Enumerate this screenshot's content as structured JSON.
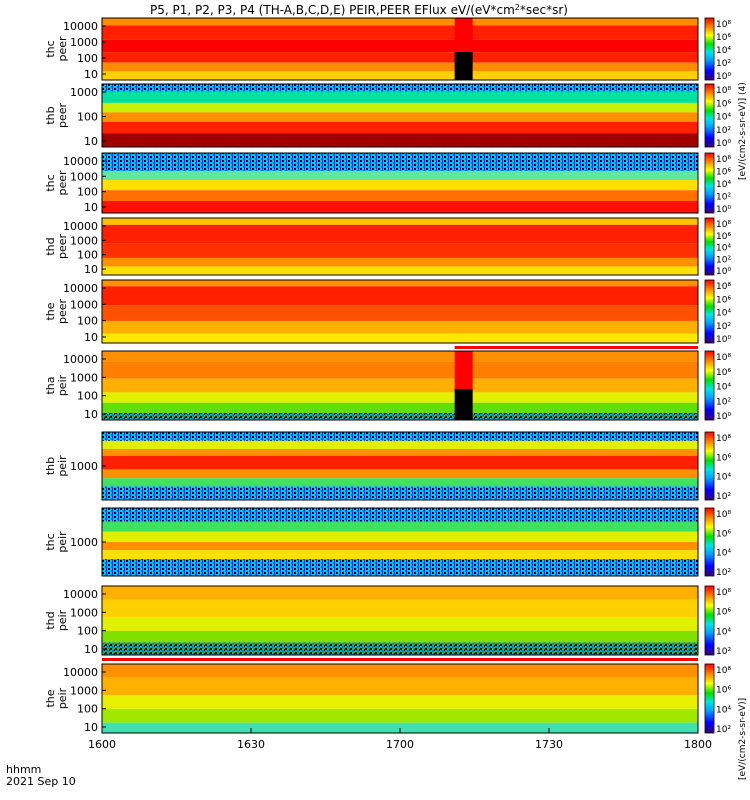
{
  "figure": {
    "title": "P5, P1, P2, P3, P4 (TH-A,B,C,D,E) PEIR,PEER EFlux eV/(eV*cm",
    "title_sup": "2",
    "title_tail": "*sec*sr)",
    "xaxis_label_line1": "hhmm",
    "xaxis_label_line2": "2021 Sep 10",
    "colorbar_unit_label": "[eV/(cm2-s-sr-eV)]",
    "colorbar_unit_label_top": "[eV/(cm2-s-sr-eV)] (4)"
  },
  "chart_data": {
    "type": "heatmap",
    "x_axis": {
      "ticks": [
        "1600",
        "1630",
        "1700",
        "1730",
        "1800"
      ],
      "range": [
        "1600",
        "1800"
      ]
    },
    "colorbar_scale": "log",
    "colormap": "rainbow",
    "panels": [
      {
        "name": "thc peer",
        "label_line1": "thc",
        "label_line2": "peer",
        "y_scale": "log",
        "y_ticks": [
          "10000",
          "1000",
          "100",
          "10"
        ],
        "cb_ticks": [
          "10⁸",
          "10⁶",
          "10⁴",
          "10²",
          "10⁰"
        ]
      },
      {
        "name": "thb peer",
        "label_line1": "thb",
        "label_line2": "peer",
        "y_scale": "log",
        "y_ticks": [
          "1000",
          "100",
          "10"
        ],
        "cb_ticks": [
          "10⁸",
          "10⁶",
          "10⁴",
          "10²",
          "10⁰"
        ]
      },
      {
        "name": "thc peer",
        "label_line1": "thc",
        "label_line2": "peer",
        "y_scale": "log",
        "y_ticks": [
          "10000",
          "1000",
          "100",
          "10"
        ],
        "cb_ticks": [
          "10⁸",
          "10⁶",
          "10⁴",
          "10²",
          "10⁰"
        ]
      },
      {
        "name": "thd peer",
        "label_line1": "thd",
        "label_line2": "peer",
        "y_scale": "log",
        "y_ticks": [
          "10000",
          "1000",
          "100",
          "10"
        ],
        "cb_ticks": [
          "10⁸",
          "10⁶",
          "10⁴",
          "10²",
          "10⁰"
        ]
      },
      {
        "name": "the peer",
        "label_line1": "the",
        "label_line2": "peer",
        "y_scale": "log",
        "y_ticks": [
          "10000",
          "1000",
          "100",
          "10"
        ],
        "cb_ticks": [
          "10⁸",
          "10⁶",
          "10⁴",
          "10²",
          "10⁰"
        ]
      },
      {
        "name": "tha peir",
        "label_line1": "tha",
        "label_line2": "peir",
        "y_scale": "log",
        "y_ticks": [
          "10000",
          "1000",
          "100",
          "10"
        ],
        "cb_ticks": [
          "10⁸",
          "10⁶",
          "10⁴",
          "10²",
          "10⁰"
        ]
      },
      {
        "name": "thb peir",
        "label_line1": "thb",
        "label_line2": "peir",
        "y_scale": "log",
        "y_ticks": [
          "1000"
        ],
        "cb_ticks": [
          "10⁸",
          "10⁶",
          "10⁴",
          "10²"
        ]
      },
      {
        "name": "thc peir",
        "label_line1": "thc",
        "label_line2": "peir",
        "y_scale": "log",
        "y_ticks": [
          "1000"
        ],
        "cb_ticks": [
          "10⁸",
          "10⁶",
          "10⁴",
          "10²"
        ]
      },
      {
        "name": "thd peir",
        "label_line1": "thd",
        "label_line2": "peir",
        "y_scale": "log",
        "y_ticks": [
          "10000",
          "1000",
          "100",
          "10"
        ],
        "cb_ticks": [
          "10⁸",
          "10⁶",
          "10⁴",
          "10²"
        ]
      },
      {
        "name": "the peir",
        "label_line1": "the",
        "label_line2": "peir",
        "y_scale": "log",
        "y_ticks": [
          "10000",
          "1000",
          "100",
          "10"
        ],
        "cb_ticks": [
          "10⁸",
          "10⁶",
          "10⁴",
          "10²"
        ]
      }
    ]
  },
  "colors": {
    "dark_red": "#8b0000",
    "red": "#ff0000",
    "orange": "#ff8c00",
    "yellow": "#ffff00",
    "green": "#00e000",
    "cyan": "#00e5e5",
    "blue": "#0000ff",
    "purple": "#5a0078",
    "black": "#000000"
  }
}
